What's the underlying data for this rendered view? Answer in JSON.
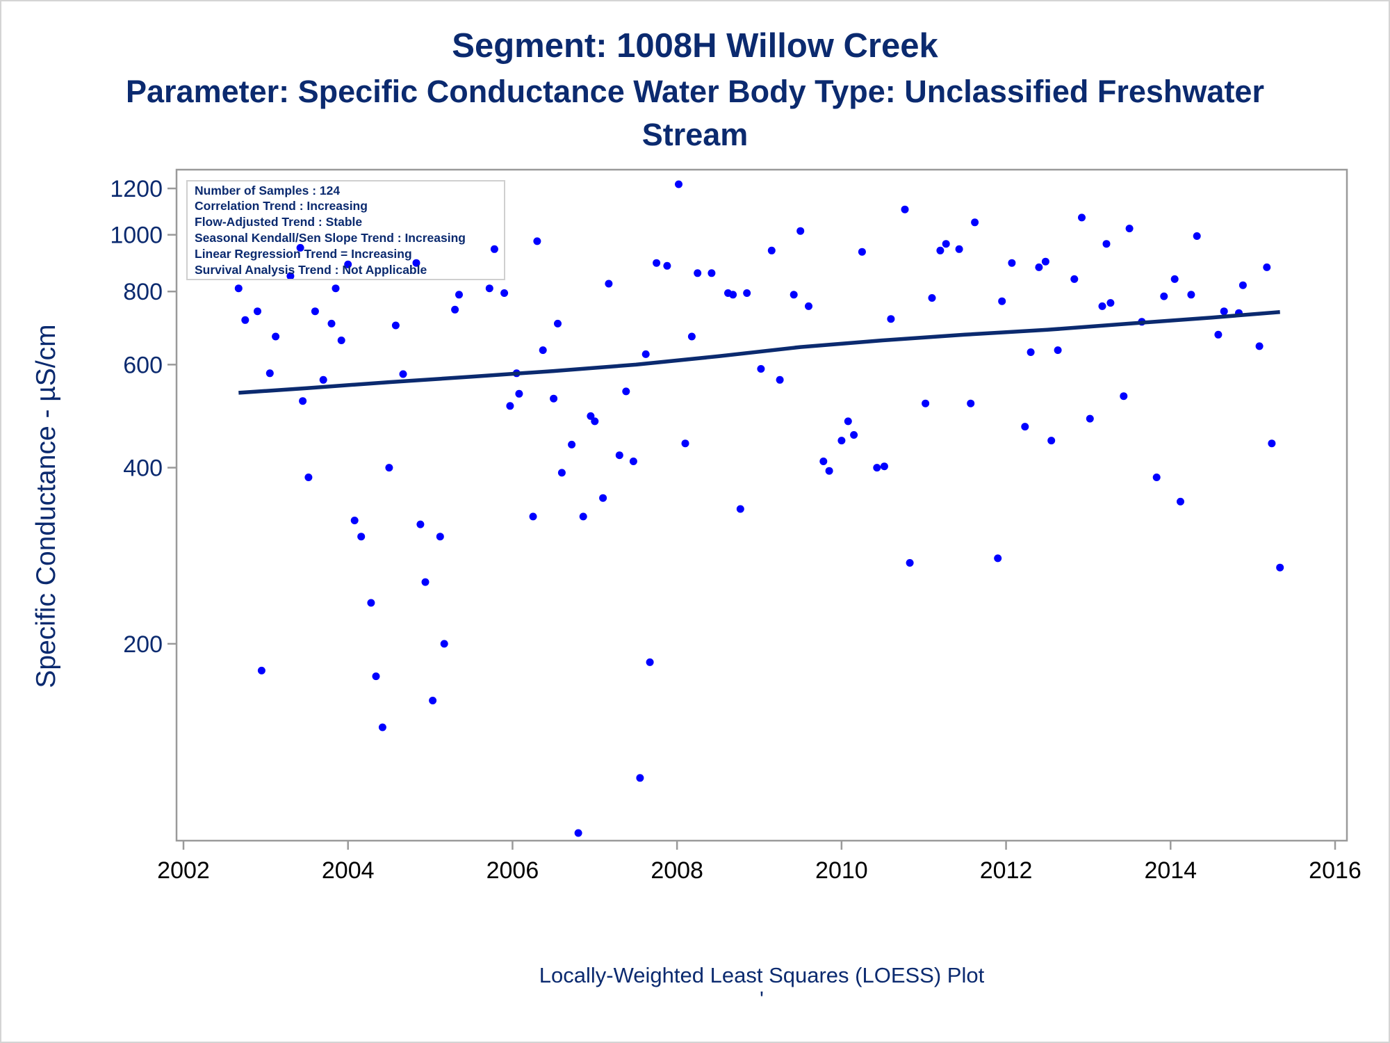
{
  "titles": {
    "line1": "Segment: 1008H  Willow Creek",
    "line2": "Parameter: Specific Conductance   Water Body Type: Unclassified Freshwater",
    "line3": "Stream"
  },
  "stats_box": [
    "Number of Samples : 124",
    "Correlation Trend : Increasing",
    "Flow-Adjusted Trend : Stable",
    "Seasonal Kendall/Sen Slope Trend : Increasing",
    "Linear Regression Trend = Increasing",
    "Survival Analysis Trend : Not Applicable"
  ],
  "footnote_mark": "'",
  "colors": {
    "title": "#0b2a6f",
    "points": "#0000ff",
    "loess": "#0b2a6f",
    "frame": "#9a9a9a"
  },
  "chart_data": {
    "type": "scatter",
    "title": "",
    "xlabel": "Locally-Weighted Least Squares (LOESS) Plot",
    "ylabel": "Specific Conductance -  µS/cm",
    "y_scale": "log",
    "xlim": [
      2002,
      2016
    ],
    "ylim": [
      95,
      1230
    ],
    "x_ticks": [
      2002,
      2004,
      2006,
      2008,
      2010,
      2012,
      2014,
      2016
    ],
    "y_ticks": [
      200,
      400,
      600,
      800,
      1000,
      1200
    ],
    "grid": false,
    "series": [
      {
        "kind": "points",
        "x": [
          2002.67,
          2002.75,
          2002.9,
          2002.95,
          2003.05,
          2003.12,
          2003.3,
          2003.42,
          2003.45,
          2003.52,
          2003.6,
          2003.7,
          2003.8,
          2003.85,
          2003.92,
          2004.0,
          2004.08,
          2004.16,
          2004.28,
          2004.34,
          2004.42,
          2004.5,
          2004.58,
          2004.67,
          2004.83,
          2004.88,
          2004.94,
          2005.03,
          2005.12,
          2005.17,
          2005.3,
          2005.35,
          2005.72,
          2005.78,
          2005.9,
          2005.97,
          2006.05,
          2006.08,
          2006.25,
          2006.3,
          2006.37,
          2006.5,
          2006.55,
          2006.6,
          2006.72,
          2006.8,
          2006.86,
          2006.95,
          2007.0,
          2007.1,
          2007.17,
          2007.3,
          2007.38,
          2007.47,
          2007.55,
          2007.62,
          2007.67,
          2007.75,
          2007.88,
          2008.02,
          2008.1,
          2008.18,
          2008.25,
          2008.42,
          2008.62,
          2008.68,
          2008.77,
          2008.85,
          2009.02,
          2009.15,
          2009.25,
          2009.42,
          2009.5,
          2009.6,
          2009.78,
          2009.85,
          2010.0,
          2010.08,
          2010.15,
          2010.25,
          2010.43,
          2010.52,
          2010.6,
          2010.77,
          2010.83,
          2011.02,
          2011.1,
          2011.2,
          2011.27,
          2011.43,
          2011.57,
          2011.62,
          2011.9,
          2011.95,
          2012.07,
          2012.23,
          2012.3,
          2012.4,
          2012.48,
          2012.55,
          2012.63,
          2012.83,
          2012.92,
          2013.02,
          2013.17,
          2013.22,
          2013.27,
          2013.43,
          2013.5,
          2013.65,
          2013.83,
          2013.92,
          2014.05,
          2014.12,
          2014.25,
          2014.32,
          2014.58,
          2014.65,
          2014.83,
          2014.88,
          2015.08,
          2015.17,
          2015.23,
          2015.33
        ],
        "y": [
          810,
          715,
          740,
          180,
          580,
          670,
          850,
          950,
          520,
          385,
          740,
          565,
          705,
          810,
          660,
          890,
          325,
          305,
          235,
          176,
          144,
          400,
          700,
          578,
          895,
          320,
          255,
          160,
          305,
          200,
          745,
          790,
          810,
          945,
          795,
          510,
          580,
          535,
          330,
          975,
          635,
          525,
          705,
          392,
          438,
          95,
          330,
          490,
          480,
          355,
          825,
          420,
          540,
          410,
          118,
          625,
          186,
          895,
          885,
          1220,
          440,
          670,
          860,
          860,
          795,
          790,
          340,
          795,
          590,
          940,
          565,
          790,
          1015,
          755,
          410,
          395,
          445,
          480,
          455,
          935,
          400,
          402,
          718,
          1105,
          275,
          515,
          780,
          940,
          965,
          945,
          515,
          1050,
          280,
          770,
          895,
          470,
          630,
          880,
          900,
          445,
          635,
          840,
          1070,
          485,
          755,
          965,
          765,
          530,
          1025,
          710,
          385,
          785,
          840,
          350,
          790,
          995,
          675,
          740,
          735,
          820,
          645,
          880,
          440,
          270
        ]
      },
      {
        "kind": "loess_line",
        "x": [
          2002.67,
          2003.5,
          2004.5,
          2005.5,
          2006.5,
          2007.5,
          2008.5,
          2009.5,
          2010.5,
          2011.5,
          2012.5,
          2013.5,
          2014.5,
          2015.33
        ],
        "y": [
          537,
          547,
          560,
          572,
          585,
          600,
          620,
          643,
          660,
          675,
          688,
          705,
          722,
          738
        ]
      }
    ]
  }
}
